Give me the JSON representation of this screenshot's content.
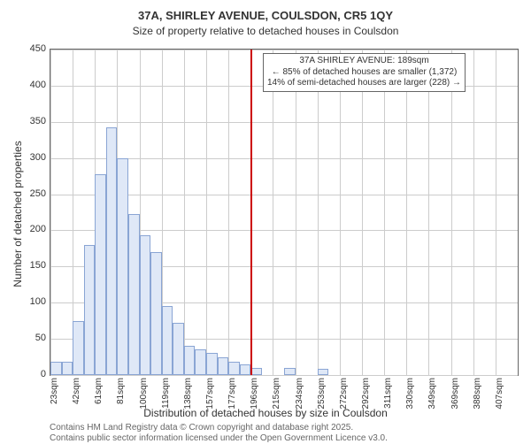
{
  "header": {
    "title": "37A, SHIRLEY AVENUE, COULSDON, CR5 1QY",
    "subtitle": "Size of property relative to detached houses in Coulsdon"
  },
  "axes": {
    "y_label": "Number of detached properties",
    "x_label": "Distribution of detached houses by size in Coulsdon",
    "y_ticks": [
      0,
      50,
      100,
      150,
      200,
      250,
      300,
      350,
      400,
      450
    ],
    "y_max": 450,
    "x_tick_labels": [
      "23sqm",
      "42sqm",
      "61sqm",
      "81sqm",
      "100sqm",
      "119sqm",
      "138sqm",
      "157sqm",
      "177sqm",
      "196sqm",
      "215sqm",
      "234sqm",
      "253sqm",
      "272sqm",
      "292sqm",
      "311sqm",
      "330sqm",
      "349sqm",
      "369sqm",
      "388sqm",
      "407sqm"
    ]
  },
  "chart": {
    "type": "histogram",
    "bar_fill": "#dfe8f7",
    "bar_border": "#8aa5d4",
    "grid_color": "#cccccc",
    "marker_color": "#cc0000",
    "background": "#ffffff",
    "values": [
      18,
      18,
      75,
      180,
      278,
      342,
      300,
      223,
      193,
      170,
      95,
      72,
      40,
      35,
      30,
      25,
      18,
      15,
      10,
      0,
      0,
      10,
      0,
      0,
      8,
      0,
      0,
      0,
      0,
      0,
      0,
      0,
      0,
      0,
      0,
      0,
      0,
      0,
      0,
      0,
      0,
      0
    ],
    "marker_position_bin": 18
  },
  "annotation": {
    "line1": "37A SHIRLEY AVENUE: 189sqm",
    "line2": "← 85% of detached houses are smaller (1,372)",
    "line3": "14% of semi-detached houses are larger (228) →"
  },
  "attribution": {
    "line1": "Contains HM Land Registry data © Crown copyright and database right 2025.",
    "line2": "Contains public sector information licensed under the Open Government Licence v3.0."
  }
}
